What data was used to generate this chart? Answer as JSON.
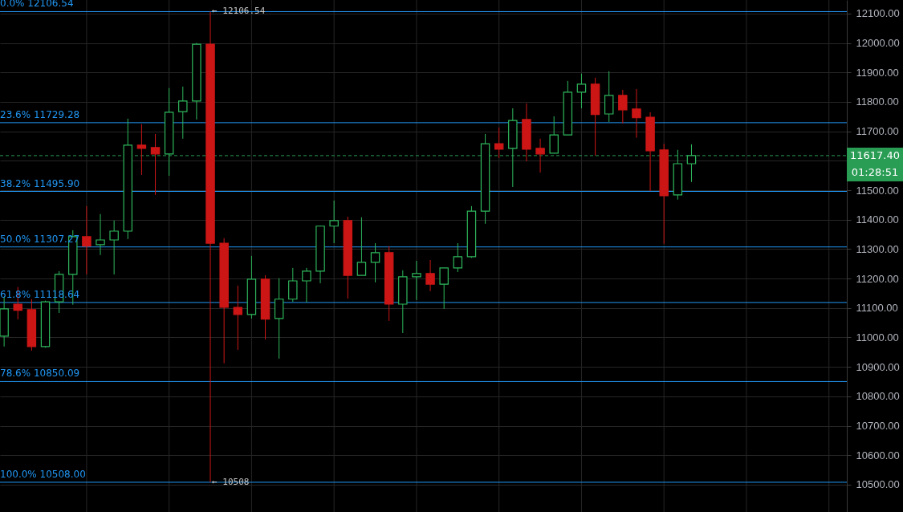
{
  "chart_data": {
    "type": "candlestick",
    "categories": [
      null,
      null,
      null,
      null,
      null,
      null,
      null,
      null,
      null,
      null,
      null,
      null,
      null,
      null,
      null,
      null,
      null,
      null,
      null,
      null,
      null,
      null,
      null,
      null,
      null,
      null,
      null,
      null,
      null,
      null,
      null,
      null,
      null,
      null,
      null,
      null,
      null,
      null,
      null,
      null,
      null,
      null,
      null,
      null,
      null,
      null,
      null,
      null,
      null,
      null,
      null,
      null,
      null,
      null,
      null,
      null,
      null,
      null,
      null,
      null,
      null,
      null
    ],
    "ohlc": [
      [
        11004,
        11138,
        10969,
        11097
      ],
      [
        11113,
        11171,
        11061,
        11092
      ],
      [
        11094,
        11130,
        10955,
        10969
      ],
      [
        10969,
        11125,
        10965,
        11121
      ],
      [
        11121,
        11225,
        11083,
        11214
      ],
      [
        11214,
        11364,
        11111,
        11342
      ],
      [
        11342,
        11446,
        11214,
        11310
      ],
      [
        11315,
        11419,
        11280,
        11331
      ],
      [
        11331,
        11397,
        11214,
        11361
      ],
      [
        11361,
        11743,
        11334,
        11653
      ],
      [
        11653,
        11724,
        11552,
        11642
      ],
      [
        11645,
        11691,
        11484,
        11623
      ],
      [
        11623,
        11847,
        11549,
        11765
      ],
      [
        11767,
        11852,
        11675,
        11803
      ],
      [
        11803,
        12000,
        11740,
        11996
      ],
      [
        11996,
        12106.54,
        10508,
        11320
      ],
      [
        11320,
        11337,
        10912,
        11102
      ],
      [
        11102,
        11176,
        10958,
        11078
      ],
      [
        11078,
        11277,
        11064,
        11198
      ],
      [
        11198,
        11211,
        10993,
        11062
      ],
      [
        11064,
        11201,
        10928,
        11130
      ],
      [
        11130,
        11236,
        11121,
        11192
      ],
      [
        11192,
        11236,
        11119,
        11225
      ],
      [
        11225,
        11380,
        11184,
        11378
      ],
      [
        11378,
        11465,
        11320,
        11397
      ],
      [
        11397,
        11410,
        11132,
        11211
      ],
      [
        11211,
        11408,
        11211,
        11255
      ],
      [
        11255,
        11320,
        11187,
        11288
      ],
      [
        11288,
        11310,
        11056,
        11113
      ],
      [
        11113,
        11228,
        11015,
        11206
      ],
      [
        11206,
        11260,
        11127,
        11217
      ],
      [
        11217,
        11263,
        11157,
        11181
      ],
      [
        11181,
        11236,
        11097,
        11236
      ],
      [
        11236,
        11320,
        11222,
        11274
      ],
      [
        11274,
        11446,
        11270,
        11429
      ],
      [
        11429,
        11691,
        11386,
        11658
      ],
      [
        11658,
        11713,
        11609,
        11639
      ],
      [
        11642,
        11778,
        11511,
        11737
      ],
      [
        11740,
        11795,
        11598,
        11639
      ],
      [
        11642,
        11675,
        11560,
        11623
      ],
      [
        11626,
        11751,
        11626,
        11688
      ],
      [
        11688,
        11871,
        11688,
        11833
      ],
      [
        11833,
        11896,
        11778,
        11860
      ],
      [
        11860,
        11882,
        11618,
        11757
      ],
      [
        11759,
        11904,
        11732,
        11822
      ],
      [
        11822,
        11841,
        11727,
        11773
      ],
      [
        11776,
        11844,
        11678,
        11746
      ],
      [
        11748,
        11765,
        11498,
        11634
      ],
      [
        11637,
        11658,
        11318,
        11481
      ],
      [
        11484,
        11637,
        11468,
        11590
      ],
      [
        11590,
        11656,
        11528,
        11617.4
      ],
      null,
      null,
      null,
      null,
      null,
      null,
      null,
      null,
      null,
      null,
      null
    ],
    "colors": [
      "#2eb85c",
      "#cc1616",
      "#cc1616",
      "#2eb85c",
      "#2eb85c",
      "#2eb85c",
      "#cc1616",
      "#2eb85c",
      "#2eb85c",
      "#2eb85c",
      "#cc1616",
      "#cc1616",
      "#2eb85c",
      "#2eb85c",
      "#2eb85c",
      "#cc1616",
      "#cc1616",
      "#cc1616",
      "#2eb85c",
      "#cc1616",
      "#2eb85c",
      "#2eb85c",
      "#2eb85c",
      "#2eb85c",
      "#2eb85c",
      "#cc1616",
      "#2eb85c",
      "#2eb85c",
      "#cc1616",
      "#2eb85c",
      "#2eb85c",
      "#cc1616",
      "#2eb85c",
      "#2eb85c",
      "#2eb85c",
      "#2eb85c",
      "#cc1616",
      "#2eb85c",
      "#cc1616",
      "#cc1616",
      "#2eb85c",
      "#2eb85c",
      "#2eb85c",
      "#cc1616",
      "#2eb85c",
      "#cc1616",
      "#cc1616",
      "#cc1616",
      "#cc1616",
      "#2eb85c",
      "#2eb85c",
      null,
      null,
      null,
      null,
      null,
      null,
      null,
      null,
      null,
      null,
      null
    ],
    "ylim": [
      10407,
      12146
    ],
    "yticks": [
      {
        "value": 10500,
        "label": "10500.00"
      },
      {
        "value": 10600,
        "label": "10600.00"
      },
      {
        "value": 10700,
        "label": "10700.00"
      },
      {
        "value": 10800,
        "label": "10800.00"
      },
      {
        "value": 10900,
        "label": "10900.00"
      },
      {
        "value": 11000,
        "label": "11000.00"
      },
      {
        "value": 11100,
        "label": "11100.00"
      },
      {
        "value": 11200,
        "label": "11200.00"
      },
      {
        "value": 11300,
        "label": "11300.00"
      },
      {
        "value": 11400,
        "label": "11400.00"
      },
      {
        "value": 11500,
        "label": "11500.00"
      },
      {
        "value": 11600,
        "label": null
      },
      {
        "value": 11700,
        "label": "11700.00"
      },
      {
        "value": 11800,
        "label": "11800.00"
      },
      {
        "value": 11900,
        "label": "11900.00"
      },
      {
        "value": 12000,
        "label": "12000.00"
      },
      {
        "value": 12100,
        "label": "12100.00"
      }
    ],
    "grid": true,
    "ref_lines": [
      {
        "axis": "y",
        "value": 12106.54,
        "label": "0.0% 12106.54",
        "color": "#2196f3"
      },
      {
        "axis": "y",
        "value": 11729.28,
        "label": "23.6% 11729.28",
        "color": "#2196f3"
      },
      {
        "axis": "y",
        "value": 11495.9,
        "label": "38.2% 11495.90",
        "color": "#2196f3"
      },
      {
        "axis": "y",
        "value": 11307.27,
        "label": "50.0% 11307.27",
        "color": "#2196f3"
      },
      {
        "axis": "y",
        "value": 11118.64,
        "label": "61.8% 11118.64",
        "color": "#2196f3"
      },
      {
        "axis": "y",
        "value": 10850.09,
        "label": "78.6% 10850.09",
        "color": "#2196f3"
      },
      {
        "axis": "y",
        "value": 10508.0,
        "label": "100.0% 10508.00",
        "color": "#2196f3"
      },
      {
        "axis": "y",
        "value": 11617.4,
        "label": "11617.40",
        "color": "#2a9d55",
        "line_style": "dashed"
      }
    ],
    "annotations": [
      "← 12106.54",
      "← 10508",
      "01:28:51"
    ]
  }
}
